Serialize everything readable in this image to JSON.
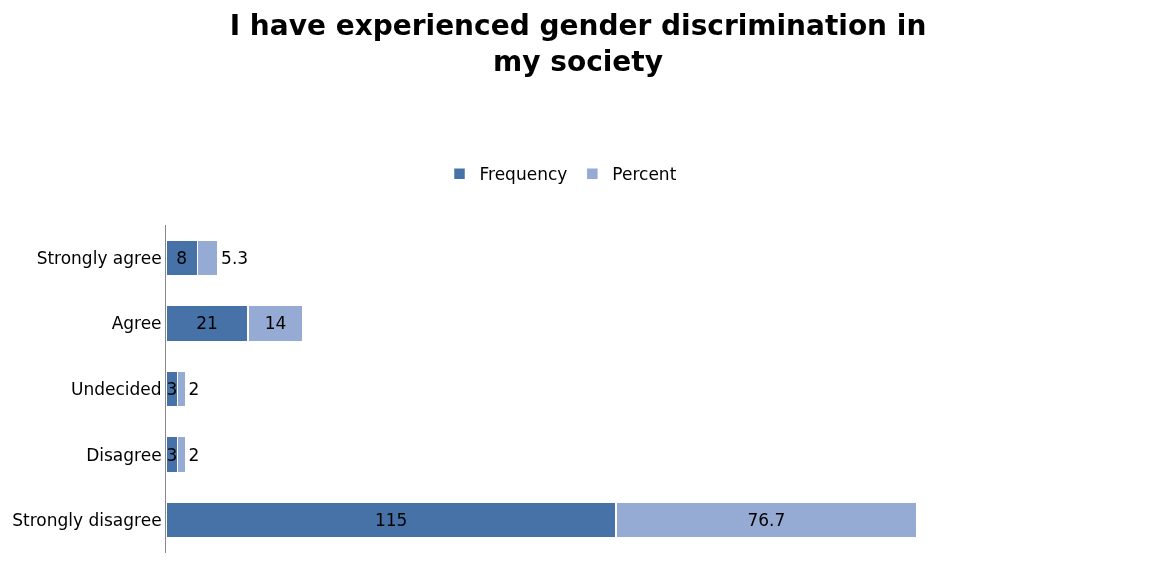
{
  "chart_data": {
    "type": "bar",
    "orientation": "horizontal",
    "stacked": true,
    "title": "I have experienced gender discrimination in my society",
    "categories": [
      "Strongly agree",
      "Agree",
      "Undecided",
      "Disagree",
      "Strongly disagree"
    ],
    "series": [
      {
        "name": "Frequency",
        "color": "#4672a8",
        "values": [
          8,
          21,
          3,
          3,
          115
        ]
      },
      {
        "name": "Percent",
        "color": "#95abd4",
        "values": [
          5.3,
          14,
          2,
          2,
          76.7
        ]
      }
    ],
    "data_labels": true,
    "legend": "top",
    "tick_labels": "y"
  }
}
